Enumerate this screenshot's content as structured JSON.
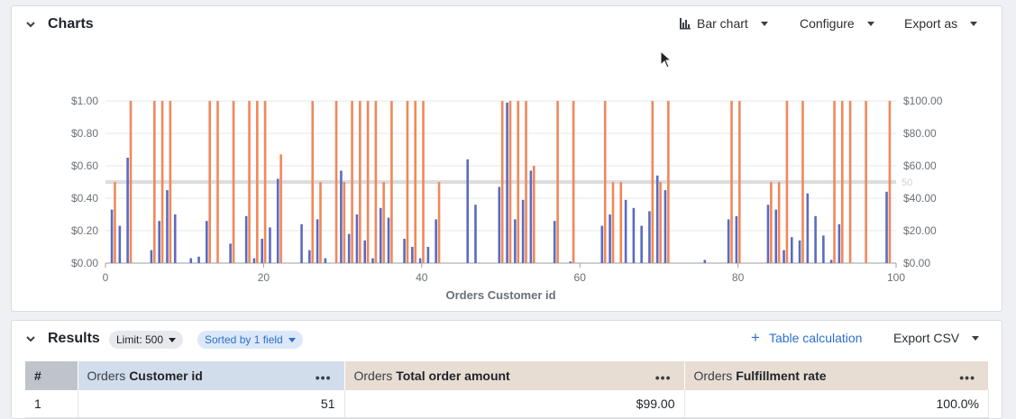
{
  "charts": {
    "title": "Charts",
    "chart_type_label": "Bar chart",
    "configure_label": "Configure",
    "export_as_label": "Export as"
  },
  "results": {
    "title": "Results",
    "limit_label": "Limit: 500",
    "sorted_label": "Sorted by 1 field",
    "table_calc_label": "Table calculation",
    "export_csv_label": "Export CSV",
    "columns": [
      {
        "prefix": "",
        "field": "#"
      },
      {
        "prefix": "Orders",
        "field": "Customer id"
      },
      {
        "prefix": "Orders",
        "field": "Total order amount"
      },
      {
        "prefix": "Orders",
        "field": "Fulfillment rate"
      }
    ],
    "rows": [
      [
        "1",
        "51",
        "$99.00",
        "100.0%"
      ]
    ]
  },
  "colors": {
    "series_blue": "#5b6bbf",
    "series_orange": "#f0885a",
    "reference_line": "#dddddd",
    "link_blue": "#2b6fce"
  },
  "chart_data": {
    "type": "bar",
    "xlabel": "Orders Customer id",
    "x_ticks": [
      0,
      20,
      40,
      60,
      80,
      100
    ],
    "xlim": [
      0,
      100
    ],
    "y_left_ticks": [
      "$0.00",
      "$0.20",
      "$0.40",
      "$0.60",
      "$0.80",
      "$1.00"
    ],
    "ylim_left": [
      0,
      1
    ],
    "y_right_ticks": [
      "$0.00",
      "$20.00",
      "$40.00",
      "$60.00",
      "$80.00",
      "$100.00"
    ],
    "ylim_right": [
      0,
      100
    ],
    "reference_line": {
      "value": 50,
      "label": "50"
    },
    "series": [
      {
        "axis": "left",
        "color": "#5b6bbf",
        "points": [
          [
            1,
            0.33
          ],
          [
            2,
            0.23
          ],
          [
            3,
            0.65
          ],
          [
            6,
            0.08
          ],
          [
            7,
            0.26
          ],
          [
            8,
            0.45
          ],
          [
            9,
            0.3
          ],
          [
            11,
            0.03
          ],
          [
            12,
            0.04
          ],
          [
            13,
            0.26
          ],
          [
            16,
            0.12
          ],
          [
            18,
            0.29
          ],
          [
            19,
            0.03
          ],
          [
            20,
            0.15
          ],
          [
            21,
            0.22
          ],
          [
            22,
            0.52
          ],
          [
            25,
            0.24
          ],
          [
            26,
            0.08
          ],
          [
            27,
            0.27
          ],
          [
            28,
            0.03
          ],
          [
            30,
            0.57
          ],
          [
            31,
            0.18
          ],
          [
            32,
            0.3
          ],
          [
            33,
            0.14
          ],
          [
            34,
            0.03
          ],
          [
            35,
            0.34
          ],
          [
            36,
            0.28
          ],
          [
            38,
            0.15
          ],
          [
            39,
            0.1
          ],
          [
            40,
            0.03
          ],
          [
            41,
            0.1
          ],
          [
            42,
            0.27
          ],
          [
            46,
            0.64
          ],
          [
            47,
            0.36
          ],
          [
            50,
            0.47
          ],
          [
            51,
            0.99
          ],
          [
            52,
            0.27
          ],
          [
            53,
            0.39
          ],
          [
            54,
            0.57
          ],
          [
            57,
            0.26
          ],
          [
            59,
            0.01
          ],
          [
            63,
            0.23
          ],
          [
            64,
            0.3
          ],
          [
            66,
            0.39
          ],
          [
            67,
            0.34
          ],
          [
            68,
            0.23
          ],
          [
            69,
            0.32
          ],
          [
            70,
            0.54
          ],
          [
            71,
            0.45
          ],
          [
            76,
            0.02
          ],
          [
            79,
            0.27
          ],
          [
            80,
            0.29
          ],
          [
            84,
            0.36
          ],
          [
            85,
            0.33
          ],
          [
            86,
            0.08
          ],
          [
            87,
            0.16
          ],
          [
            88,
            0.14
          ],
          [
            89,
            0.43
          ],
          [
            90,
            0.29
          ],
          [
            91,
            0.17
          ],
          [
            92,
            0.02
          ],
          [
            93,
            0.24
          ],
          [
            99,
            0.44
          ]
        ]
      },
      {
        "axis": "right",
        "color": "#f0885a",
        "points": [
          [
            1,
            50
          ],
          [
            3,
            100
          ],
          [
            6,
            100
          ],
          [
            7,
            100
          ],
          [
            8,
            100
          ],
          [
            13,
            100
          ],
          [
            14,
            100
          ],
          [
            16,
            100
          ],
          [
            18,
            100
          ],
          [
            19,
            100
          ],
          [
            20,
            100
          ],
          [
            22,
            67
          ],
          [
            26,
            100
          ],
          [
            27,
            50
          ],
          [
            29,
            100
          ],
          [
            30,
            50
          ],
          [
            31,
            100
          ],
          [
            32,
            100
          ],
          [
            33,
            100
          ],
          [
            34,
            100
          ],
          [
            35,
            50
          ],
          [
            36,
            100
          ],
          [
            38,
            100
          ],
          [
            39,
            100
          ],
          [
            40,
            100
          ],
          [
            42,
            50
          ],
          [
            50,
            100
          ],
          [
            51,
            100
          ],
          [
            52,
            100
          ],
          [
            53,
            100
          ],
          [
            54,
            60
          ],
          [
            57,
            100
          ],
          [
            59,
            100
          ],
          [
            63,
            100
          ],
          [
            64,
            50
          ],
          [
            65,
            50
          ],
          [
            69,
            100
          ],
          [
            70,
            50
          ],
          [
            71,
            100
          ],
          [
            79,
            100
          ],
          [
            80,
            100
          ],
          [
            84,
            50
          ],
          [
            85,
            50
          ],
          [
            86,
            100
          ],
          [
            88,
            100
          ],
          [
            92,
            100
          ],
          [
            93,
            100
          ],
          [
            94,
            100
          ],
          [
            96,
            100
          ],
          [
            99,
            100
          ]
        ]
      }
    ]
  }
}
